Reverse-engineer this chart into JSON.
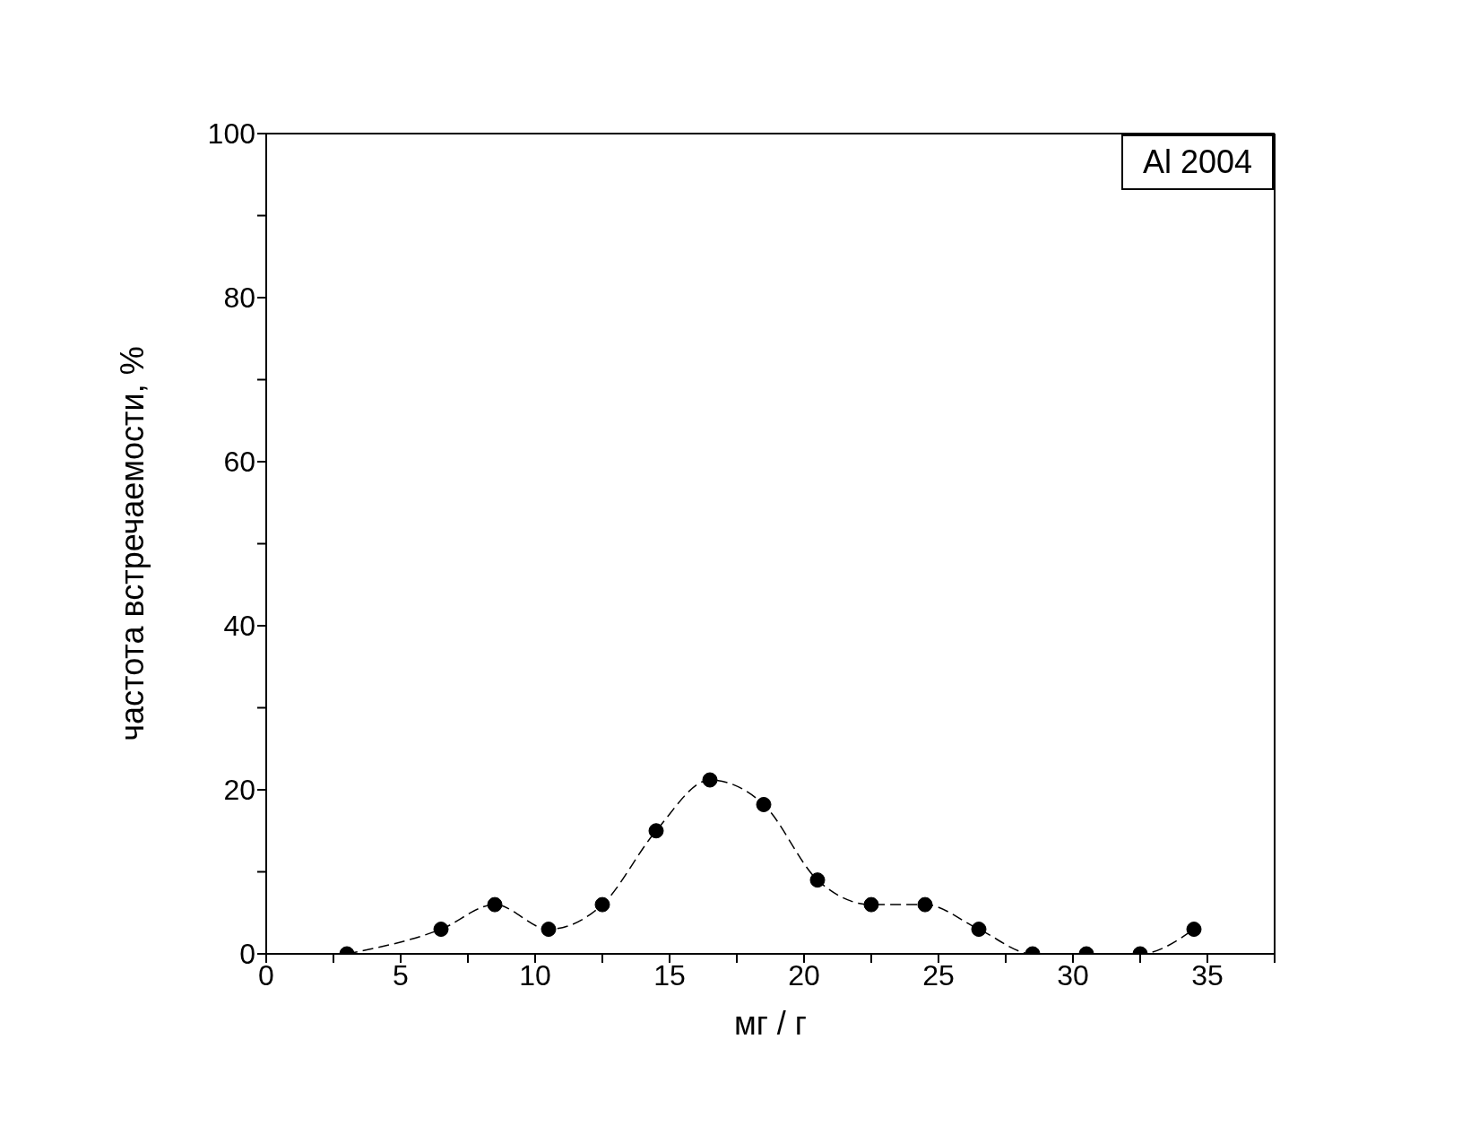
{
  "chart_data": {
    "type": "line",
    "xlabel": "мг / г",
    "ylabel": "частота встречаемости, %",
    "annotations": [
      "Al 2004"
    ],
    "x": [
      3,
      6.5,
      8.5,
      10.5,
      12.5,
      14.5,
      16.5,
      18.5,
      20.5,
      22.5,
      24.5,
      26.5,
      28.5,
      30.5,
      32.5,
      34.5
    ],
    "series": [
      {
        "color": "#000000",
        "values": [
          0,
          3,
          6,
          3,
          6,
          15,
          21.2,
          18.2,
          9,
          6,
          6,
          3,
          0,
          0,
          0,
          3
        ]
      }
    ],
    "xlim": [
      0,
      37.5
    ],
    "xticks": [
      0,
      {
        "value": 2.5,
        "label": null
      },
      5,
      {
        "value": 7.5,
        "label": null
      },
      10,
      {
        "value": 12.5,
        "label": null
      },
      15,
      {
        "value": 17.5,
        "label": null
      },
      20,
      {
        "value": 22.5,
        "label": null
      },
      25,
      {
        "value": 27.5,
        "label": null
      },
      30,
      {
        "value": 32.5,
        "label": null
      },
      35,
      {
        "value": 37.5,
        "label": null
      }
    ],
    "ylim": [
      0,
      100
    ],
    "yticks": [
      0,
      {
        "value": 10,
        "label": null
      },
      20,
      {
        "value": 30,
        "label": null
      },
      40,
      {
        "value": 50,
        "label": null
      },
      60,
      {
        "value": 70,
        "label": null
      },
      80,
      {
        "value": 90,
        "label": null
      },
      100
    ],
    "grid": false,
    "marker": "circle",
    "line_style": "dashed"
  }
}
